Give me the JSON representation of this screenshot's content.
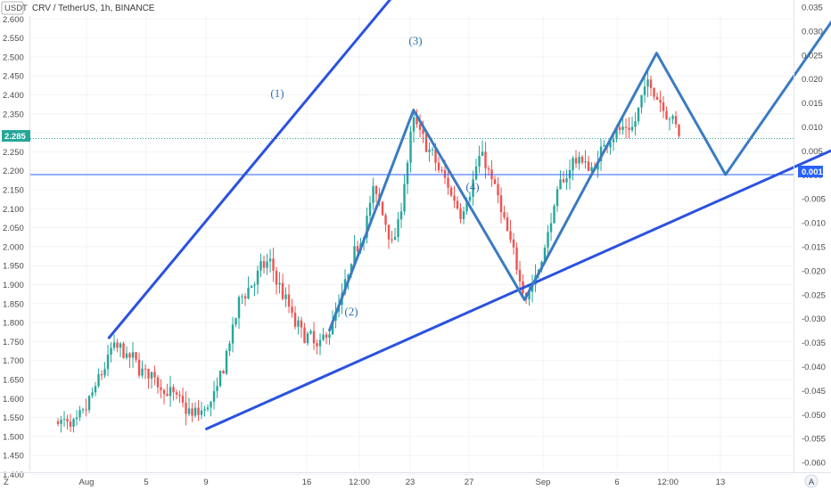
{
  "header": {
    "title": "CRV / TetherUS, 1h, BINANCE",
    "currency_badge": "USDT"
  },
  "corner": {
    "left": "Z",
    "right": "A"
  },
  "chart_data": {
    "type": "candlestick",
    "left_axis": {
      "ticks": [
        "1.400",
        "1.450",
        "1.500",
        "1.550",
        "1.600",
        "1.650",
        "1.700",
        "1.750",
        "1.800",
        "1.850",
        "1.900",
        "1.950",
        "2.000",
        "2.050",
        "2.100",
        "2.150",
        "2.200",
        "2.250",
        "2.300",
        "2.350",
        "2.400",
        "2.450",
        "2.500",
        "2.550",
        "2.600"
      ],
      "range": [
        1.4,
        2.6
      ]
    },
    "right_axis": {
      "ticks": [
        "0.035",
        "0.030",
        "0.025",
        "0.020",
        "0.015",
        "0.010",
        "0.005",
        "0.000",
        "-0.005",
        "-0.010",
        "-0.015",
        "-0.020",
        "-0.025",
        "-0.030",
        "-0.035",
        "-0.040",
        "-0.045",
        "-0.050",
        "-0.055",
        "-0.060"
      ]
    },
    "x_axis": {
      "ticks": [
        "Aug",
        "5",
        "9",
        "16",
        "12:00",
        "23",
        "27",
        "Sep",
        "6",
        "12:00",
        "13"
      ]
    },
    "current_price": {
      "label": "2.285",
      "value": 2.285
    },
    "horizontal_line": {
      "label": "0.001",
      "value": 2.19
    },
    "wave_labels": [
      "(1)",
      "(2)",
      "(3)",
      "(4)"
    ],
    "trendlines": {
      "upper_channel": [
        [
          1.75,
          1.76
        ],
        [
          13,
          2.83
        ]
      ],
      "lower_channel": [
        [
          5.0,
          1.52
        ],
        [
          28.0,
          2.33
        ]
      ],
      "wave_path": [
        [
          9.1,
          1.78
        ],
        [
          11.9,
          2.36
        ],
        [
          15.6,
          1.86
        ],
        [
          20.0,
          2.51
        ],
        [
          22.3,
          2.19
        ],
        [
          28.0,
          2.84
        ]
      ]
    },
    "candles_anchor_path": [
      [
        0.0,
        1.54
      ],
      [
        0.6,
        1.52
      ],
      [
        1.5,
        1.68
      ],
      [
        1.8,
        1.74
      ],
      [
        3.2,
        1.65
      ],
      [
        4.5,
        1.55
      ],
      [
        5.2,
        1.6
      ],
      [
        6.1,
        1.88
      ],
      [
        7.0,
        1.96
      ],
      [
        7.9,
        1.79
      ],
      [
        8.7,
        1.73
      ],
      [
        9.4,
        1.86
      ],
      [
        10.5,
        2.15
      ],
      [
        11.2,
        2.0
      ],
      [
        11.8,
        2.34
      ],
      [
        12.4,
        2.24
      ],
      [
        13.4,
        2.09
      ],
      [
        14.1,
        2.25
      ],
      [
        14.6,
        2.13
      ],
      [
        15.1,
        1.98
      ],
      [
        15.6,
        1.87
      ],
      [
        16.0,
        1.94
      ],
      [
        16.6,
        2.14
      ],
      [
        17.2,
        2.24
      ],
      [
        17.8,
        2.2
      ],
      [
        18.4,
        2.31
      ],
      [
        19.1,
        2.3
      ],
      [
        19.6,
        2.44
      ],
      [
        20.2,
        2.37
      ],
      [
        20.8,
        2.28
      ]
    ]
  }
}
